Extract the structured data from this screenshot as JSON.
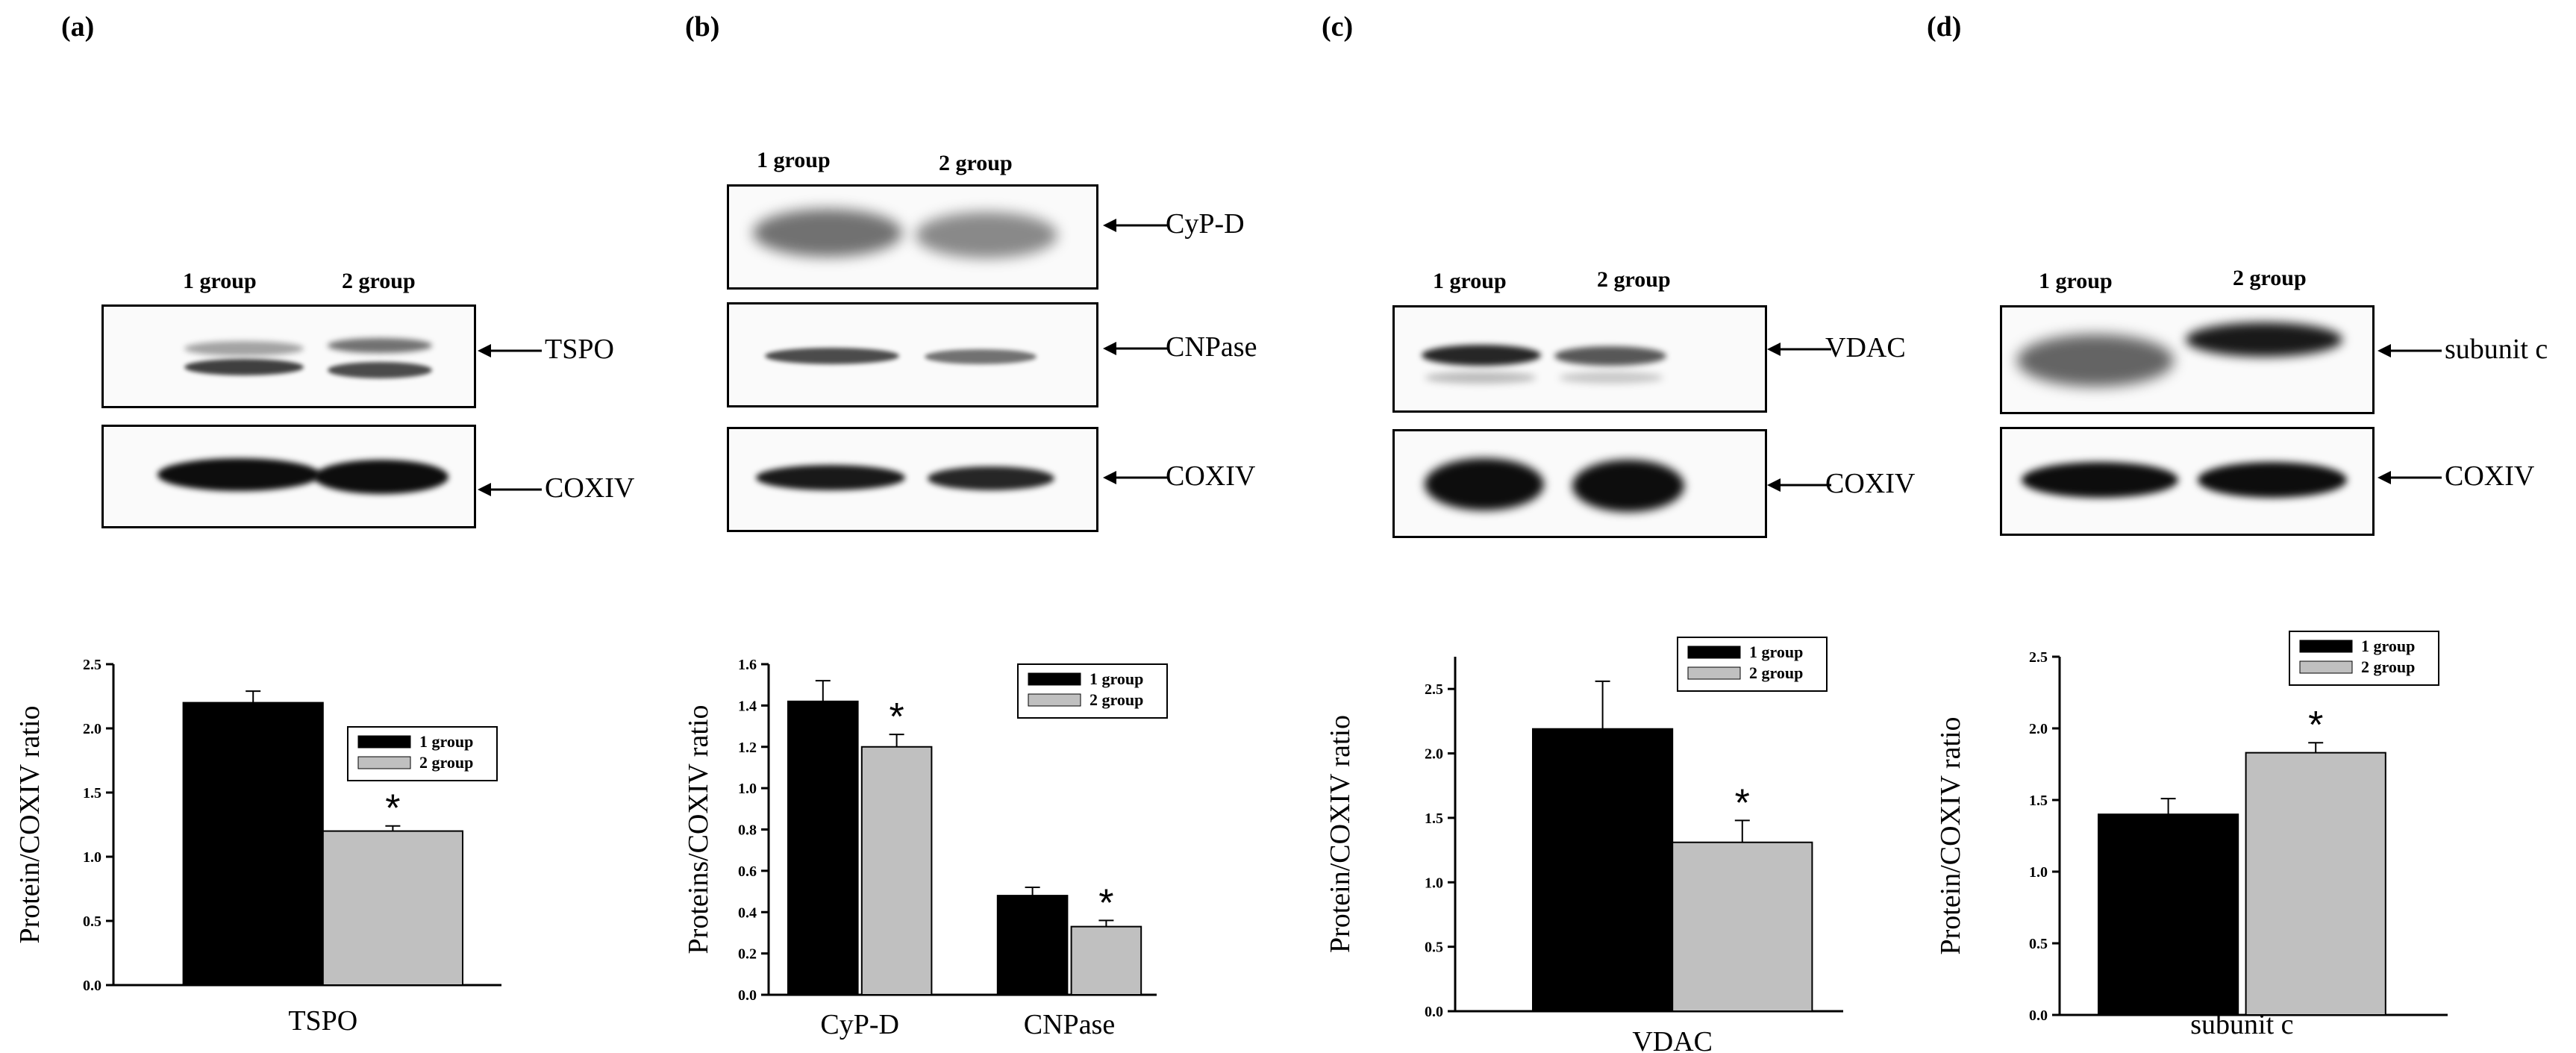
{
  "panels": [
    {
      "letter": "(a)",
      "lanes": [
        "1 group",
        "2 group"
      ],
      "blots": [
        {
          "label": "TSPO"
        },
        {
          "label": "COXIV"
        }
      ]
    },
    {
      "letter": "(b)",
      "lanes": [
        "1 group",
        "2 group"
      ],
      "blots": [
        {
          "label": "CyP-D"
        },
        {
          "label": "CNPase"
        },
        {
          "label": "COXIV"
        }
      ]
    },
    {
      "letter": "(c)",
      "lanes": [
        "1 group",
        "2 group"
      ],
      "blots": [
        {
          "label": "VDAC"
        },
        {
          "label": "COXIV"
        }
      ]
    },
    {
      "letter": "(d)",
      "lanes": [
        "1 group",
        "2 group"
      ],
      "blots": [
        {
          "label": "subunit c"
        },
        {
          "label": "COXIV"
        }
      ]
    }
  ],
  "colors": {
    "group1": "#000000",
    "group2": "#c0c0c0"
  },
  "chart_data": [
    {
      "type": "bar",
      "panel": "(a)",
      "categories": [
        "TSPO"
      ],
      "series": [
        {
          "name": "1 group",
          "values": [
            2.2
          ],
          "errors": [
            0.09
          ]
        },
        {
          "name": "2 group",
          "values": [
            1.2
          ],
          "errors": [
            0.04
          ]
        }
      ],
      "significance": [
        "*"
      ],
      "ylabel": "Protein/COXIV ratio",
      "ylim": [
        0,
        2.5
      ],
      "yticks": [
        "0.0",
        "0.5",
        "1.0",
        "1.5",
        "2.0",
        "2.5"
      ],
      "legend": "right",
      "grid": false
    },
    {
      "type": "bar",
      "panel": "(b)",
      "categories": [
        "CyP-D",
        "CNPase"
      ],
      "series": [
        {
          "name": "1 group",
          "values": [
            1.42,
            0.48
          ],
          "errors": [
            0.1,
            0.04
          ]
        },
        {
          "name": "2 group",
          "values": [
            1.2,
            0.33
          ],
          "errors": [
            0.06,
            0.03
          ]
        }
      ],
      "significance": [
        "*",
        "*"
      ],
      "ylabel": "Proteins/COXIV ratio",
      "ylim": [
        0,
        1.6
      ],
      "yticks": [
        "0.0",
        "0.2",
        "0.4",
        "0.6",
        "0.8",
        "1.0",
        "1.2",
        "1.4",
        "1.6"
      ],
      "legend": "top-right",
      "grid": false
    },
    {
      "type": "bar",
      "panel": "(c)",
      "categories": [
        "VDAC"
      ],
      "series": [
        {
          "name": "1 group",
          "values": [
            2.19
          ],
          "errors": [
            0.37
          ]
        },
        {
          "name": "2 group",
          "values": [
            1.31
          ],
          "errors": [
            0.17
          ]
        }
      ],
      "significance": [
        "*"
      ],
      "ylabel": "Protein/COXIV ratio",
      "ylim": [
        0,
        2.75
      ],
      "yticks": [
        "0.0",
        "0.5",
        "1.0",
        "1.5",
        "2.0",
        "2.5"
      ],
      "legend": "top-right",
      "grid": false
    },
    {
      "type": "bar",
      "panel": "(d)",
      "categories": [
        "subunit c"
      ],
      "series": [
        {
          "name": "1 group",
          "values": [
            1.4
          ],
          "errors": [
            0.11
          ]
        },
        {
          "name": "2 group",
          "values": [
            1.83
          ],
          "errors": [
            0.07
          ]
        }
      ],
      "significance": [
        "*"
      ],
      "ylabel": "Protein/COXIV ratio",
      "ylim": [
        0,
        2.5
      ],
      "yticks": [
        "0.0",
        "0.5",
        "1.0",
        "1.5",
        "2.0",
        "2.5"
      ],
      "legend": "top-right",
      "grid": false
    }
  ]
}
